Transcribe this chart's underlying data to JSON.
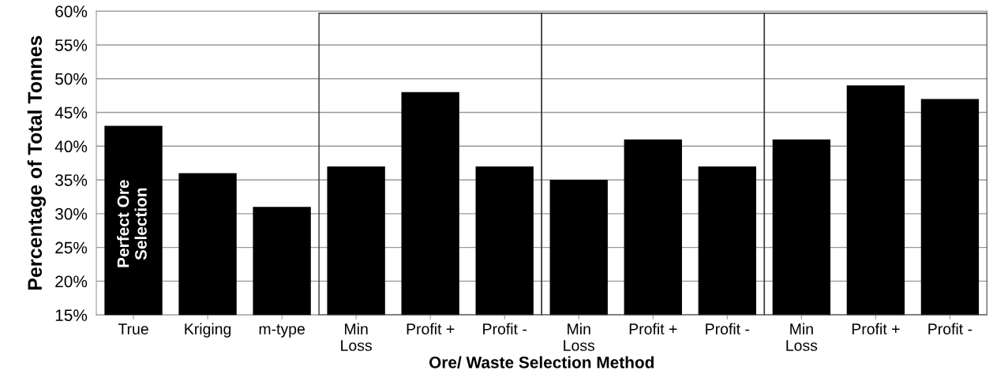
{
  "chart_data": {
    "type": "bar",
    "xlabel": "Ore/ Waste Selection Method",
    "ylabel": "Percentage of Total Tonnes",
    "categories": [
      "True",
      "Kriging",
      "m-type",
      "Min\nLoss",
      "Profit +",
      "Profit -",
      "Min\nLoss",
      "Profit +",
      "Profit -",
      "Min\nLoss",
      "Profit +",
      "Profit -"
    ],
    "values": [
      43,
      36,
      31,
      37,
      48,
      37,
      35,
      41,
      37,
      41,
      49,
      47
    ],
    "color": "#000000",
    "ylim": [
      15,
      60
    ],
    "yticks": [
      {
        "value": 15,
        "label": "15%"
      },
      {
        "value": 20,
        "label": "20%"
      },
      {
        "value": 25,
        "label": "25%"
      },
      {
        "value": 30,
        "label": "30%"
      },
      {
        "value": 35,
        "label": "35%"
      },
      {
        "value": 40,
        "label": "40%"
      },
      {
        "value": 45,
        "label": "45%"
      },
      {
        "value": 50,
        "label": "50%"
      },
      {
        "value": 55,
        "label": "55%"
      },
      {
        "value": 60,
        "label": "60%"
      }
    ],
    "grid": "y",
    "annotations": [
      "Perfect Ore\nSelection"
    ]
  }
}
